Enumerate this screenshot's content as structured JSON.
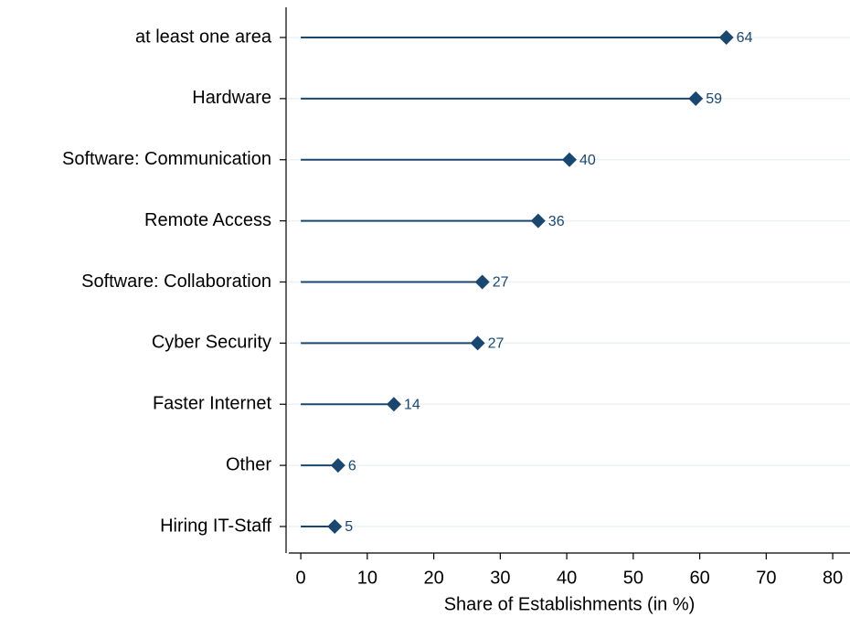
{
  "chart_data": {
    "type": "lollipop",
    "xlabel": "Share of Establishments (in %)",
    "categories": [
      "at least one area",
      "Hardware",
      "Software: Communication",
      "Remote Access",
      "Software: Collaboration",
      "Cyber Security",
      "Faster Internet",
      "Other",
      "Hiring IT-Staff"
    ],
    "values": [
      64.0,
      59.4,
      40.4,
      35.7,
      27.3,
      26.6,
      14.0,
      5.6,
      5.1
    ],
    "value_labels": [
      "64",
      "59",
      "40",
      "36",
      "27",
      "27",
      "14",
      "6",
      "5"
    ],
    "color": "#1a476f",
    "xlim": [
      -1.8,
      82.6
    ],
    "xticks": [
      0,
      10,
      20,
      30,
      40,
      50,
      60,
      70,
      80
    ],
    "grid": true
  }
}
